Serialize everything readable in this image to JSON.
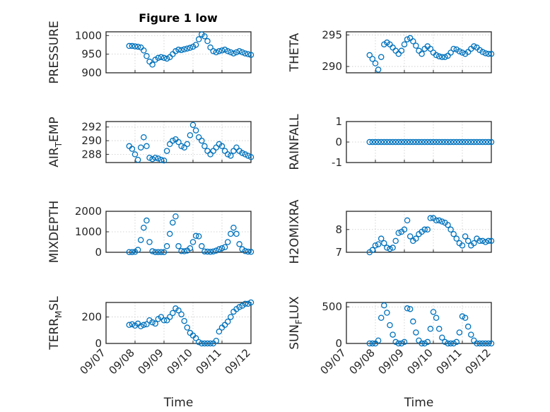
{
  "figure": {
    "title": "Figure 1 low",
    "marker_color": "#0072bd",
    "x_tick_labels": [
      "09/07",
      "09/08",
      "09/09",
      "09/10",
      "09/11",
      "09/12"
    ],
    "xlabel": "Time"
  },
  "chart_data": [
    {
      "type": "scatter",
      "ylabel": "PRESSURE",
      "ylim": [
        900,
        1010
      ],
      "yticks": [
        900,
        950,
        1000
      ],
      "grid": true,
      "x": [
        0.8,
        0.9,
        1.0,
        1.1,
        1.2,
        1.3,
        1.4,
        1.5,
        1.6,
        1.7,
        1.8,
        1.9,
        2.0,
        2.1,
        2.2,
        2.3,
        2.4,
        2.5,
        2.6,
        2.7,
        2.8,
        2.9,
        3.0,
        3.1,
        3.2,
        3.3,
        3.4,
        3.5,
        3.6,
        3.7,
        3.8,
        3.9,
        4.0,
        4.1,
        4.2,
        4.3,
        4.4,
        4.5,
        4.6,
        4.7,
        4.8,
        4.9,
        5.0
      ],
      "y": [
        972,
        972,
        971,
        970,
        968,
        960,
        945,
        930,
        922,
        935,
        940,
        942,
        940,
        938,
        942,
        950,
        958,
        962,
        961,
        963,
        965,
        967,
        970,
        975,
        990,
        1003,
        998,
        985,
        968,
        958,
        955,
        958,
        960,
        962,
        958,
        955,
        952,
        955,
        958,
        955,
        952,
        950,
        948
      ]
    },
    {
      "type": "scatter",
      "ylabel": "THETA",
      "ylim": [
        289,
        295.5
      ],
      "yticks": [
        290,
        295
      ],
      "grid": true,
      "x": [
        0.8,
        0.9,
        1.0,
        1.1,
        1.2,
        1.3,
        1.4,
        1.5,
        1.6,
        1.7,
        1.8,
        1.9,
        2.0,
        2.1,
        2.2,
        2.3,
        2.4,
        2.5,
        2.6,
        2.7,
        2.8,
        2.9,
        3.0,
        3.1,
        3.2,
        3.3,
        3.4,
        3.5,
        3.6,
        3.7,
        3.8,
        3.9,
        4.0,
        4.1,
        4.2,
        4.3,
        4.4,
        4.5,
        4.6,
        4.7,
        4.8,
        4.9,
        5.0
      ],
      "y": [
        291.8,
        291.2,
        290.5,
        289.5,
        291.5,
        293.5,
        293.8,
        293.5,
        293,
        292.5,
        292,
        292.5,
        293.5,
        294.3,
        294.5,
        294,
        293.3,
        292.5,
        292,
        292.8,
        293.2,
        292.8,
        292.2,
        291.8,
        291.6,
        291.5,
        291.5,
        291.7,
        292.2,
        292.8,
        292.7,
        292.4,
        292.2,
        292,
        292.3,
        292.8,
        293.2,
        293,
        292.6,
        292.3,
        292.1,
        292.0,
        292.0
      ]
    },
    {
      "type": "scatter",
      "ylabel": "AIR_TEMP",
      "ylabel_main": "AIR",
      "ylabel_sub": "T",
      "ylabel_rest": "EMP",
      "ylim": [
        286.8,
        292.8
      ],
      "yticks": [
        288,
        290,
        292
      ],
      "grid": true,
      "x": [
        0.8,
        0.9,
        1.0,
        1.1,
        1.2,
        1.3,
        1.4,
        1.5,
        1.6,
        1.7,
        1.8,
        1.9,
        2.0,
        2.1,
        2.2,
        2.3,
        2.4,
        2.5,
        2.6,
        2.7,
        2.8,
        2.9,
        3.0,
        3.1,
        3.2,
        3.3,
        3.4,
        3.5,
        3.6,
        3.7,
        3.8,
        3.9,
        4.0,
        4.1,
        4.2,
        4.3,
        4.4,
        4.5,
        4.6,
        4.7,
        4.8,
        4.9,
        5.0
      ],
      "y": [
        289.2,
        288.8,
        288,
        287.2,
        289,
        290.5,
        289.2,
        287.5,
        287.3,
        287.5,
        287.4,
        287.2,
        287.1,
        288.5,
        289.5,
        290,
        290.2,
        289.8,
        289.2,
        289,
        289.5,
        290.8,
        292.3,
        291.5,
        290.5,
        290,
        289.2,
        288.5,
        288,
        288.5,
        289,
        289.5,
        289.2,
        288.5,
        288,
        287.8,
        288.5,
        289,
        288.5,
        288.2,
        288,
        287.8,
        287.6
      ]
    },
    {
      "type": "scatter",
      "ylabel": "RAINFALL",
      "ylim": [
        -1,
        1
      ],
      "yticks": [
        -1,
        0,
        1
      ],
      "grid": true,
      "x": [
        0.8,
        0.9,
        1.0,
        1.1,
        1.2,
        1.3,
        1.4,
        1.5,
        1.6,
        1.7,
        1.8,
        1.9,
        2.0,
        2.1,
        2.2,
        2.3,
        2.4,
        2.5,
        2.6,
        2.7,
        2.8,
        2.9,
        3.0,
        3.1,
        3.2,
        3.3,
        3.4,
        3.5,
        3.6,
        3.7,
        3.8,
        3.9,
        4.0,
        4.1,
        4.2,
        4.3,
        4.4,
        4.5,
        4.6,
        4.7,
        4.8,
        4.9,
        5.0
      ],
      "y": [
        0,
        0,
        0,
        0,
        0,
        0,
        0,
        0,
        0,
        0,
        0,
        0,
        0,
        0,
        0,
        0,
        0,
        0,
        0,
        0,
        0,
        0,
        0,
        0,
        0,
        0,
        0,
        0,
        0,
        0,
        0,
        0,
        0,
        0,
        0,
        0,
        0,
        0,
        0,
        0,
        0,
        0,
        0
      ]
    },
    {
      "type": "scatter",
      "ylabel": "MIXDEPTH",
      "ylim": [
        0,
        2000
      ],
      "yticks": [
        0,
        1000,
        2000
      ],
      "grid": true,
      "x": [
        0.8,
        0.9,
        1.0,
        1.1,
        1.2,
        1.3,
        1.4,
        1.5,
        1.6,
        1.7,
        1.8,
        1.9,
        2.0,
        2.1,
        2.2,
        2.3,
        2.4,
        2.5,
        2.6,
        2.7,
        2.8,
        2.9,
        3.0,
        3.1,
        3.2,
        3.3,
        3.4,
        3.5,
        3.6,
        3.7,
        3.8,
        3.9,
        4.0,
        4.1,
        4.2,
        4.3,
        4.4,
        4.5,
        4.6,
        4.7,
        4.8,
        4.9,
        5.0
      ],
      "y": [
        10,
        10,
        20,
        120,
        600,
        1200,
        1550,
        500,
        50,
        10,
        10,
        10,
        10,
        300,
        900,
        1450,
        1750,
        300,
        60,
        50,
        80,
        200,
        500,
        800,
        780,
        300,
        40,
        30,
        20,
        40,
        80,
        150,
        200,
        250,
        500,
        900,
        1200,
        900,
        400,
        150,
        60,
        30,
        20
      ]
    },
    {
      "type": "scatter",
      "ylabel": "H2OMIXRA",
      "ylim": [
        7,
        8.8
      ],
      "yticks": [
        7,
        8
      ],
      "grid": true,
      "x": [
        0.8,
        0.9,
        1.0,
        1.1,
        1.2,
        1.3,
        1.4,
        1.5,
        1.6,
        1.7,
        1.8,
        1.9,
        2.0,
        2.1,
        2.2,
        2.3,
        2.4,
        2.5,
        2.6,
        2.7,
        2.8,
        2.9,
        3.0,
        3.1,
        3.2,
        3.3,
        3.4,
        3.5,
        3.6,
        3.7,
        3.8,
        3.9,
        4.0,
        4.1,
        4.2,
        4.3,
        4.4,
        4.5,
        4.6,
        4.7,
        4.8,
        4.9,
        5.0
      ],
      "y": [
        7.0,
        7.1,
        7.3,
        7.35,
        7.6,
        7.4,
        7.2,
        7.15,
        7.2,
        7.5,
        7.85,
        7.9,
        8.0,
        8.4,
        7.7,
        7.5,
        7.6,
        7.8,
        7.9,
        8.0,
        8.0,
        8.5,
        8.5,
        8.4,
        8.4,
        8.35,
        8.3,
        8.2,
        8.0,
        7.8,
        7.6,
        7.4,
        7.3,
        7.7,
        7.5,
        7.3,
        7.4,
        7.6,
        7.5,
        7.5,
        7.45,
        7.5,
        7.5
      ]
    },
    {
      "type": "scatter",
      "ylabel": "TERR_MSL",
      "ylabel_main": "TERR",
      "ylabel_sub": "M",
      "ylabel_rest": "SL",
      "ylim": [
        0,
        310
      ],
      "yticks": [
        0,
        200
      ],
      "grid": true,
      "x": [
        0.8,
        0.9,
        1.0,
        1.1,
        1.2,
        1.3,
        1.4,
        1.5,
        1.6,
        1.7,
        1.8,
        1.9,
        2.0,
        2.1,
        2.2,
        2.3,
        2.4,
        2.5,
        2.6,
        2.7,
        2.8,
        2.9,
        3.0,
        3.1,
        3.2,
        3.3,
        3.4,
        3.5,
        3.6,
        3.7,
        3.8,
        3.9,
        4.0,
        4.1,
        4.2,
        4.3,
        4.4,
        4.5,
        4.6,
        4.7,
        4.8,
        4.9,
        5.0
      ],
      "y": [
        140,
        145,
        135,
        150,
        130,
        140,
        145,
        175,
        160,
        150,
        185,
        200,
        175,
        175,
        200,
        230,
        265,
        250,
        220,
        170,
        120,
        80,
        60,
        40,
        10,
        0,
        0,
        0,
        0,
        0,
        20,
        90,
        120,
        140,
        165,
        200,
        240,
        260,
        275,
        285,
        300,
        300,
        310
      ]
    },
    {
      "type": "scatter",
      "ylabel": "SUN_FLUX",
      "ylabel_main": "SUN",
      "ylabel_sub": "F",
      "ylabel_rest": "LUX",
      "ylim": [
        0,
        560
      ],
      "yticks": [
        0,
        500
      ],
      "grid": true,
      "x": [
        0.8,
        0.9,
        1.0,
        1.1,
        1.2,
        1.3,
        1.4,
        1.5,
        1.6,
        1.7,
        1.8,
        1.9,
        2.0,
        2.1,
        2.2,
        2.3,
        2.4,
        2.5,
        2.6,
        2.7,
        2.8,
        2.9,
        3.0,
        3.1,
        3.2,
        3.3,
        3.4,
        3.5,
        3.6,
        3.7,
        3.8,
        3.9,
        4.0,
        4.1,
        4.2,
        4.3,
        4.4,
        4.5,
        4.6,
        4.7,
        4.8,
        4.9,
        5.0
      ],
      "y": [
        0,
        0,
        0,
        40,
        350,
        520,
        420,
        250,
        120,
        20,
        0,
        0,
        20,
        480,
        470,
        300,
        150,
        40,
        0,
        0,
        20,
        200,
        430,
        350,
        200,
        80,
        20,
        0,
        0,
        0,
        20,
        150,
        370,
        350,
        230,
        120,
        40,
        0,
        0,
        0,
        0,
        0,
        0
      ]
    }
  ]
}
